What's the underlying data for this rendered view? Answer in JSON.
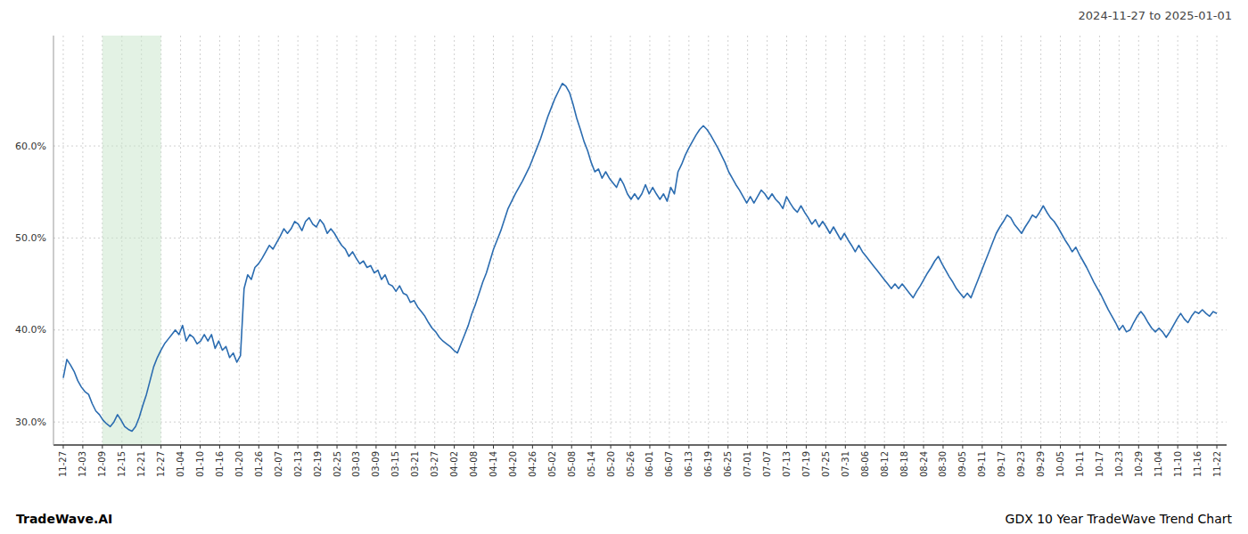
{
  "chart_data": {
    "type": "line",
    "title": "2024-11-27 to 2025-01-01",
    "annotations": [
      "TradeWave.AI",
      "GDX 10 Year TradeWave Trend Chart"
    ],
    "color": "#2b6cb0",
    "grid": true,
    "shaded_range": [
      2,
      5
    ],
    "shaded_color": "#c8e6c9",
    "xlim": [
      -0.5,
      59.5
    ],
    "xticks": [
      {
        "value": 0,
        "label": "11-27"
      },
      {
        "value": 1,
        "label": "12-03"
      },
      {
        "value": 2,
        "label": "12-09"
      },
      {
        "value": 3,
        "label": "12-15"
      },
      {
        "value": 4,
        "label": "12-21"
      },
      {
        "value": 5,
        "label": "12-27"
      },
      {
        "value": 6,
        "label": "01-04"
      },
      {
        "value": 7,
        "label": "01-10"
      },
      {
        "value": 8,
        "label": "01-16"
      },
      {
        "value": 9,
        "label": "01-20"
      },
      {
        "value": 10,
        "label": "01-26"
      },
      {
        "value": 11,
        "label": "02-07"
      },
      {
        "value": 12,
        "label": "02-13"
      },
      {
        "value": 13,
        "label": "02-19"
      },
      {
        "value": 14,
        "label": "02-25"
      },
      {
        "value": 15,
        "label": "03-03"
      },
      {
        "value": 16,
        "label": "03-09"
      },
      {
        "value": 17,
        "label": "03-15"
      },
      {
        "value": 18,
        "label": "03-21"
      },
      {
        "value": 19,
        "label": "03-27"
      },
      {
        "value": 20,
        "label": "04-02"
      },
      {
        "value": 21,
        "label": "04-08"
      },
      {
        "value": 22,
        "label": "04-14"
      },
      {
        "value": 23,
        "label": "04-20"
      },
      {
        "value": 24,
        "label": "04-26"
      },
      {
        "value": 25,
        "label": "05-02"
      },
      {
        "value": 26,
        "label": "05-08"
      },
      {
        "value": 27,
        "label": "05-14"
      },
      {
        "value": 28,
        "label": "05-20"
      },
      {
        "value": 29,
        "label": "05-26"
      },
      {
        "value": 30,
        "label": "06-01"
      },
      {
        "value": 31,
        "label": "06-07"
      },
      {
        "value": 32,
        "label": "06-13"
      },
      {
        "value": 33,
        "label": "06-19"
      },
      {
        "value": 34,
        "label": "06-25"
      },
      {
        "value": 35,
        "label": "07-01"
      },
      {
        "value": 36,
        "label": "07-07"
      },
      {
        "value": 37,
        "label": "07-13"
      },
      {
        "value": 38,
        "label": "07-19"
      },
      {
        "value": 39,
        "label": "07-25"
      },
      {
        "value": 40,
        "label": "07-31"
      },
      {
        "value": 41,
        "label": "08-06"
      },
      {
        "value": 42,
        "label": "08-12"
      },
      {
        "value": 43,
        "label": "08-18"
      },
      {
        "value": 44,
        "label": "08-24"
      },
      {
        "value": 45,
        "label": "08-30"
      },
      {
        "value": 46,
        "label": "09-05"
      },
      {
        "value": 47,
        "label": "09-11"
      },
      {
        "value": 48,
        "label": "09-17"
      },
      {
        "value": 49,
        "label": "09-23"
      },
      {
        "value": 50,
        "label": "09-29"
      },
      {
        "value": 51,
        "label": "10-05"
      },
      {
        "value": 52,
        "label": "10-11"
      },
      {
        "value": 53,
        "label": "10-17"
      },
      {
        "value": 54,
        "label": "10-23"
      },
      {
        "value": 55,
        "label": "10-29"
      },
      {
        "value": 56,
        "label": "11-04"
      },
      {
        "value": 57,
        "label": "11-10"
      },
      {
        "value": 58,
        "label": "11-16"
      },
      {
        "value": 59,
        "label": "11-22"
      }
    ],
    "ylim": [
      0.275,
      0.72
    ],
    "yticks": [
      {
        "value": 0.3,
        "label": "30.0%"
      },
      {
        "value": 0.4,
        "label": "40.0%"
      },
      {
        "value": 0.5,
        "label": "50.0%"
      },
      {
        "value": 0.6,
        "label": "60.0%"
      }
    ],
    "values": [
      0.348,
      0.368,
      0.362,
      0.355,
      0.345,
      0.338,
      0.333,
      0.33,
      0.32,
      0.312,
      0.308,
      0.302,
      0.298,
      0.295,
      0.3,
      0.308,
      0.302,
      0.295,
      0.292,
      0.29,
      0.295,
      0.305,
      0.318,
      0.33,
      0.345,
      0.36,
      0.37,
      0.378,
      0.385,
      0.39,
      0.395,
      0.4,
      0.395,
      0.405,
      0.388,
      0.395,
      0.392,
      0.385,
      0.388,
      0.395,
      0.388,
      0.395,
      0.38,
      0.388,
      0.378,
      0.382,
      0.37,
      0.375,
      0.365,
      0.372,
      0.445,
      0.46,
      0.455,
      0.468,
      0.472,
      0.478,
      0.485,
      0.492,
      0.488,
      0.495,
      0.502,
      0.51,
      0.505,
      0.51,
      0.518,
      0.515,
      0.508,
      0.518,
      0.522,
      0.515,
      0.512,
      0.52,
      0.515,
      0.505,
      0.51,
      0.505,
      0.498,
      0.492,
      0.488,
      0.48,
      0.485,
      0.478,
      0.472,
      0.475,
      0.468,
      0.47,
      0.462,
      0.465,
      0.455,
      0.46,
      0.45,
      0.448,
      0.442,
      0.448,
      0.44,
      0.438,
      0.43,
      0.432,
      0.425,
      0.42,
      0.415,
      0.408,
      0.402,
      0.398,
      0.392,
      0.388,
      0.385,
      0.382,
      0.378,
      0.375,
      0.385,
      0.395,
      0.405,
      0.418,
      0.428,
      0.44,
      0.452,
      0.462,
      0.475,
      0.488,
      0.498,
      0.508,
      0.52,
      0.532,
      0.54,
      0.548,
      0.555,
      0.562,
      0.57,
      0.578,
      0.588,
      0.598,
      0.608,
      0.62,
      0.632,
      0.642,
      0.652,
      0.66,
      0.668,
      0.665,
      0.658,
      0.645,
      0.63,
      0.618,
      0.605,
      0.595,
      0.582,
      0.572,
      0.575,
      0.565,
      0.572,
      0.565,
      0.56,
      0.555,
      0.565,
      0.558,
      0.548,
      0.542,
      0.548,
      0.542,
      0.548,
      0.558,
      0.548,
      0.555,
      0.548,
      0.542,
      0.548,
      0.54,
      0.555,
      0.548,
      0.572,
      0.58,
      0.59,
      0.598,
      0.605,
      0.612,
      0.618,
      0.622,
      0.618,
      0.612,
      0.605,
      0.598,
      0.59,
      0.582,
      0.572,
      0.565,
      0.558,
      0.552,
      0.545,
      0.538,
      0.545,
      0.538,
      0.545,
      0.552,
      0.548,
      0.542,
      0.548,
      0.542,
      0.538,
      0.532,
      0.545,
      0.538,
      0.532,
      0.528,
      0.535,
      0.528,
      0.522,
      0.515,
      0.52,
      0.512,
      0.518,
      0.512,
      0.505,
      0.512,
      0.505,
      0.498,
      0.505,
      0.498,
      0.492,
      0.485,
      0.492,
      0.485,
      0.48,
      0.475,
      0.47,
      0.465,
      0.46,
      0.455,
      0.45,
      0.445,
      0.45,
      0.445,
      0.45,
      0.445,
      0.44,
      0.435,
      0.442,
      0.448,
      0.455,
      0.462,
      0.468,
      0.475,
      0.48,
      0.472,
      0.465,
      0.458,
      0.452,
      0.445,
      0.44,
      0.435,
      0.44,
      0.435,
      0.445,
      0.455,
      0.465,
      0.475,
      0.485,
      0.495,
      0.505,
      0.512,
      0.518,
      0.525,
      0.522,
      0.515,
      0.51,
      0.505,
      0.512,
      0.518,
      0.525,
      0.522,
      0.528,
      0.535,
      0.528,
      0.522,
      0.518,
      0.512,
      0.505,
      0.498,
      0.492,
      0.485,
      0.49,
      0.482,
      0.475,
      0.468,
      0.46,
      0.452,
      0.445,
      0.438,
      0.43,
      0.422,
      0.415,
      0.408,
      0.4,
      0.405,
      0.398,
      0.4,
      0.408,
      0.415,
      0.42,
      0.415,
      0.408,
      0.402,
      0.398,
      0.402,
      0.398,
      0.392,
      0.398,
      0.405,
      0.412,
      0.418,
      0.412,
      0.408,
      0.415,
      0.42,
      0.418,
      0.422,
      0.418,
      0.415,
      0.42,
      0.418
    ]
  }
}
